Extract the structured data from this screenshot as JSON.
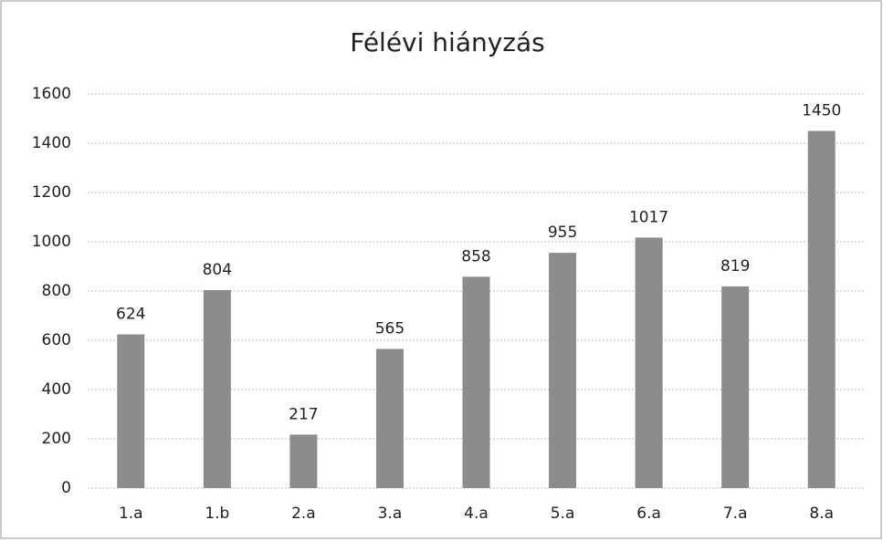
{
  "chart_data": {
    "type": "bar",
    "title": "Félévi hiányzás",
    "categories": [
      "1.a",
      "1.b",
      "2.a",
      "3.a",
      "4.a",
      "5.a",
      "6.a",
      "7.a",
      "8.a"
    ],
    "values": [
      624,
      804,
      217,
      565,
      858,
      955,
      1017,
      819,
      1450
    ],
    "color": "#8c8c8c",
    "ylim": [
      0,
      1600
    ],
    "yticks": [
      0,
      200,
      400,
      600,
      800,
      1000,
      1200,
      1400,
      1600
    ],
    "grid": true,
    "data_labels": true
  }
}
